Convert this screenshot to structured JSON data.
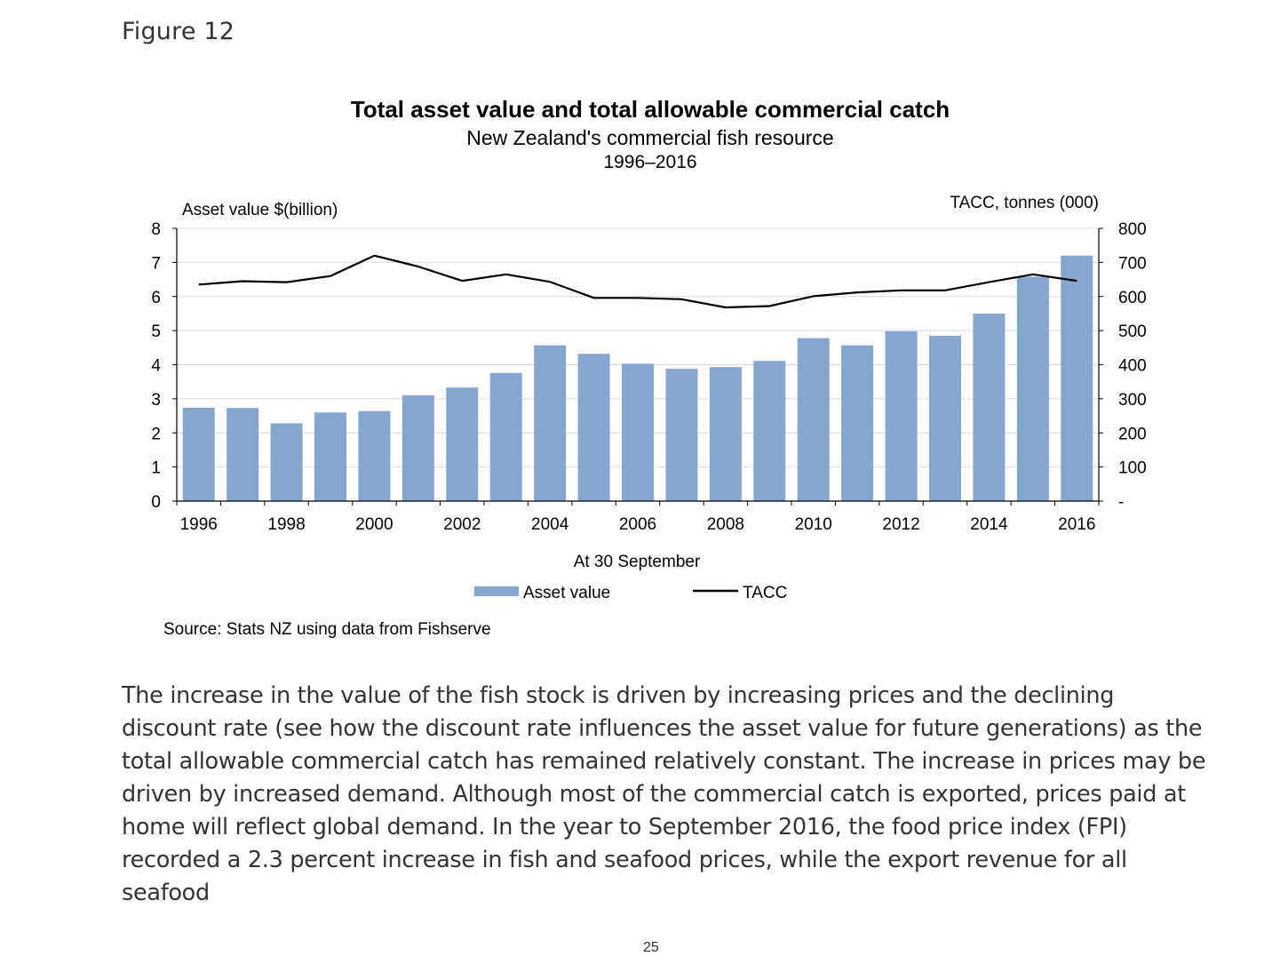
{
  "figure_label": "Figure 12",
  "source": "Source: Stats NZ using data from Fishserve",
  "paragraph": "The increase in the value of the fish stock is driven by increasing prices and the declining discount rate (see how the discount rate influences the asset value for future generations) as the total allowable commercial catch has remained relatively constant. The increase in prices may be driven by increased demand. Although most of the commercial catch is exported, prices paid at home will reflect global demand. In the year to September 2016, the food price index (FPI) recorded a 2.3 percent increase in fish and seafood prices, while the export revenue for all seafood",
  "page_number": "25",
  "chart_data": {
    "type": "bar",
    "title": "Total asset value and total allowable commercial catch",
    "subtitle": "New Zealand's commercial fish resource",
    "period": "1996–2016",
    "xlabel": "At 30 September",
    "ylabel_left": "Asset value $(billion)",
    "ylabel_right": "TACC, tonnes (000)",
    "x": [
      1996,
      1997,
      1998,
      1999,
      2000,
      2001,
      2002,
      2003,
      2004,
      2005,
      2006,
      2007,
      2008,
      2009,
      2010,
      2011,
      2012,
      2013,
      2014,
      2015,
      2016
    ],
    "x_tick_labels": [
      "1996",
      "1998",
      "2000",
      "2002",
      "2004",
      "2006",
      "2008",
      "2010",
      "2012",
      "2014",
      "2016"
    ],
    "ylim_left": [
      0,
      8
    ],
    "left_ticks": [
      "0",
      "1",
      "2",
      "3",
      "4",
      "5",
      "6",
      "7",
      "8"
    ],
    "ylim_right": [
      0,
      800
    ],
    "right_ticks": [
      "-",
      "100",
      "200",
      "300",
      "400",
      "500",
      "600",
      "700",
      "800"
    ],
    "grid": true,
    "legend_position": "bottom",
    "series": [
      {
        "name": "Asset value",
        "type": "bar",
        "axis": "left",
        "color": "#86a6cf",
        "values": [
          2.74,
          2.73,
          2.28,
          2.6,
          2.64,
          3.1,
          3.33,
          3.76,
          4.57,
          4.32,
          4.03,
          3.88,
          3.93,
          4.11,
          4.78,
          4.57,
          4.98,
          4.85,
          5.5,
          6.58,
          7.2
        ]
      },
      {
        "name": "TACC",
        "type": "line",
        "axis": "right",
        "color": "#000000",
        "values": [
          635,
          645,
          642,
          660,
          720,
          688,
          646,
          665,
          643,
          596,
          596,
          592,
          568,
          572,
          601,
          612,
          618,
          618,
          642,
          665,
          646
        ]
      }
    ]
  }
}
